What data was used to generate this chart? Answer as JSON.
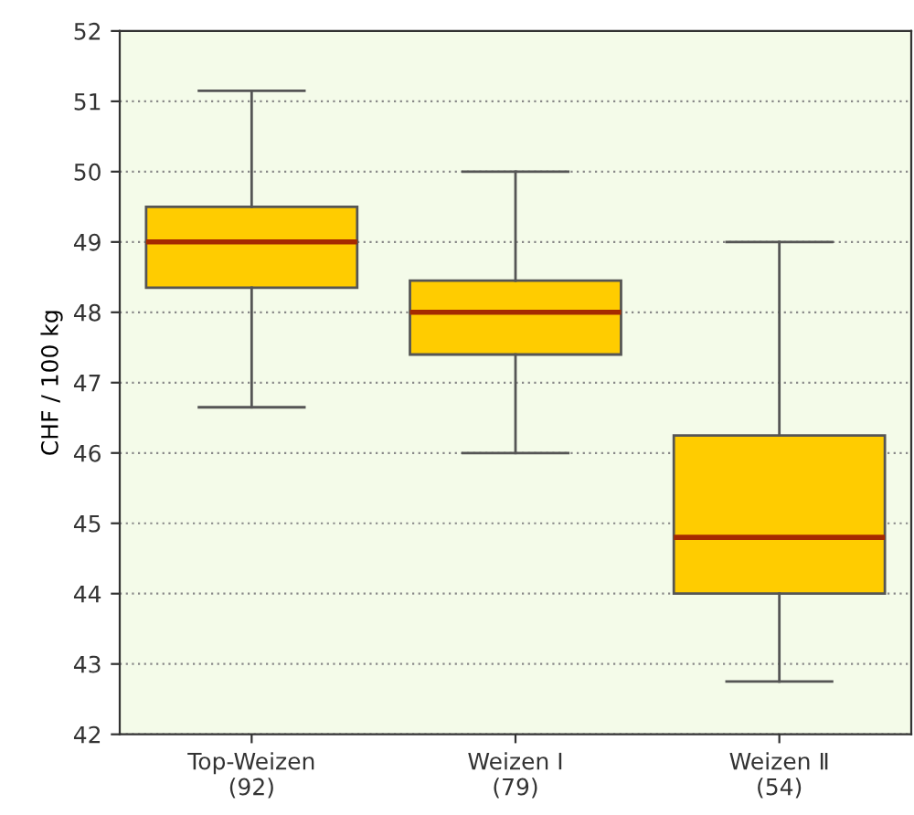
{
  "chart_data": {
    "type": "box",
    "ylabel": "CHF / 100 kg",
    "categories": [
      "Top-Weizen\n(92)",
      "Weizen I\n(79)",
      "Weizen Ⅱ\n(54)"
    ],
    "boxes": [
      {
        "low": 46.65,
        "q1": 48.35,
        "median": 49.0,
        "q3": 49.5,
        "high": 51.15
      },
      {
        "low": 46.0,
        "q1": 47.4,
        "median": 48.0,
        "q3": 48.45,
        "high": 50.0
      },
      {
        "low": 42.75,
        "q1": 44.0,
        "median": 44.8,
        "q3": 46.25,
        "high": 49.0
      }
    ],
    "color": "#ffcc00",
    "ylim": [
      42,
      52
    ],
    "yticks": [
      42,
      43,
      44,
      45,
      46,
      47,
      48,
      49,
      50,
      51,
      52
    ],
    "grid": "y"
  }
}
